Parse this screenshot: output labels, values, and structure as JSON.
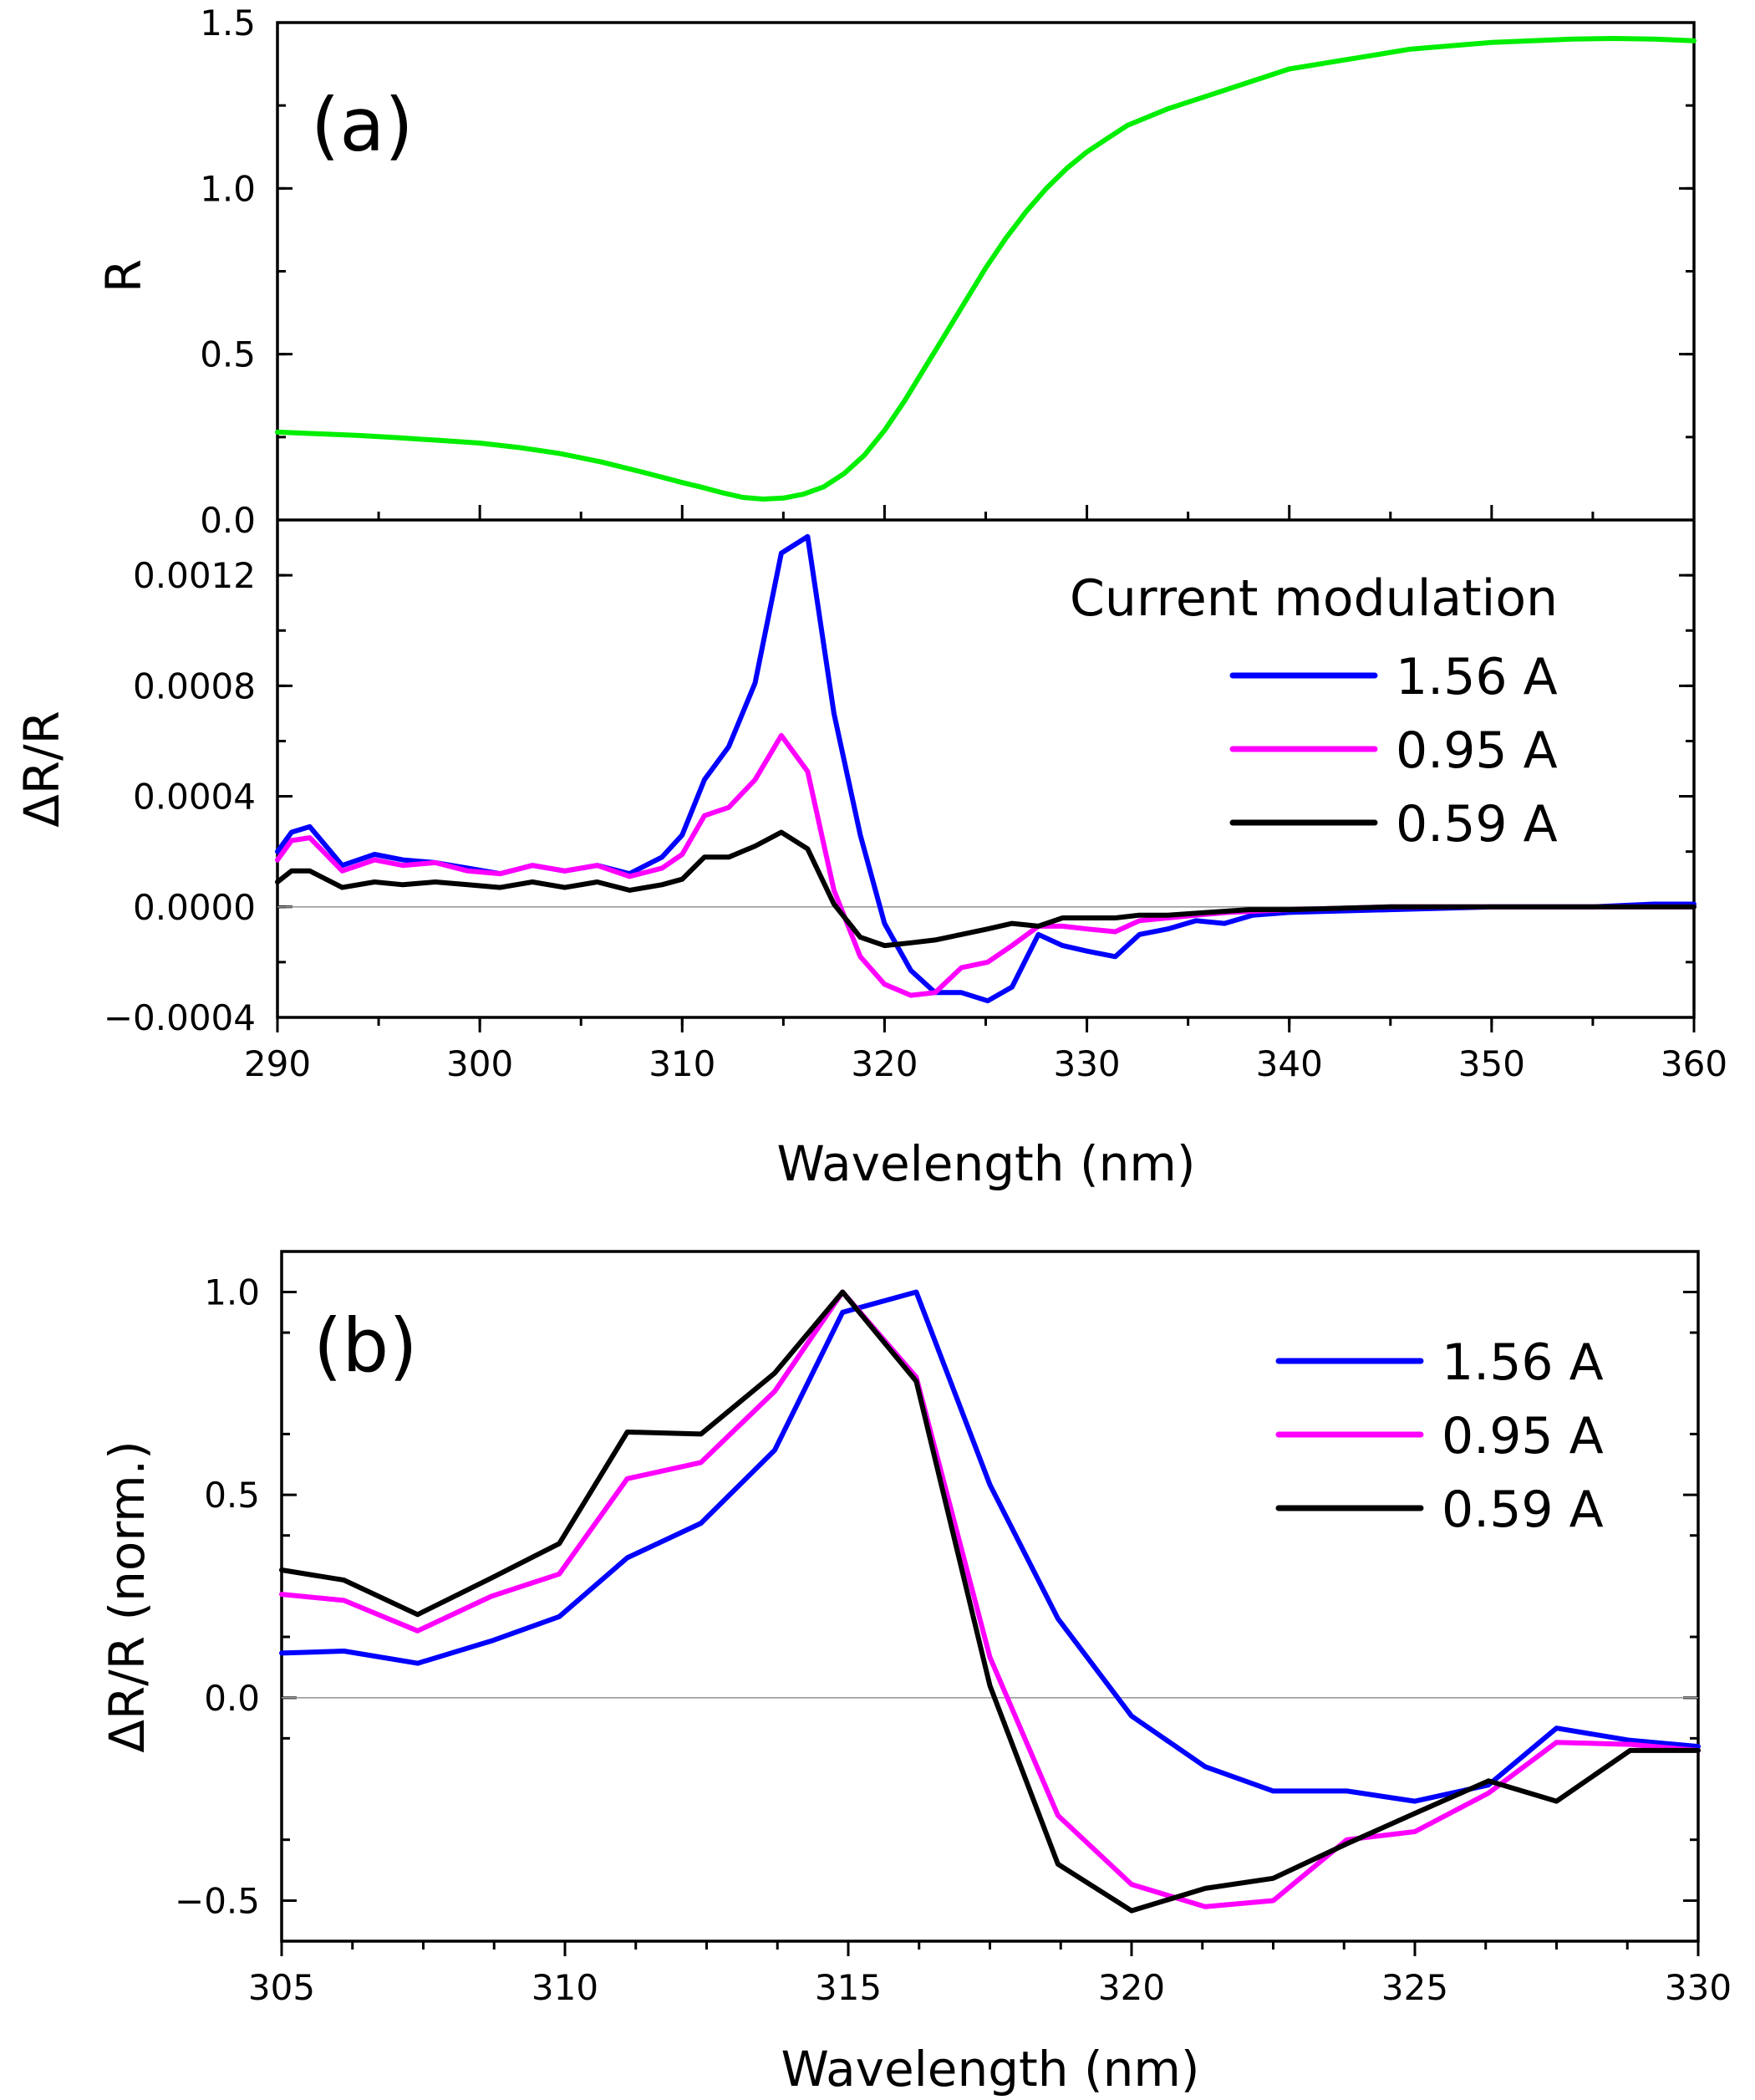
{
  "chart_data": [
    {
      "panel": "(a)",
      "type": "line",
      "subplot": "top",
      "ylabel": "R",
      "xlim": [
        290,
        360
      ],
      "ylim": [
        0.0,
        1.5
      ],
      "yticks": [
        "0.0",
        "0.5",
        "1.0",
        "1.5"
      ],
      "series": [
        {
          "name": "R",
          "color": "#00ee00",
          "points": [
            [
              290,
              0.265
            ],
            [
              292,
              0.26
            ],
            [
              294,
              0.255
            ],
            [
              296,
              0.248
            ],
            [
              298,
              0.24
            ],
            [
              300,
              0.232
            ],
            [
              302,
              0.218
            ],
            [
              304,
              0.2
            ],
            [
              306,
              0.175
            ],
            [
              308,
              0.145
            ],
            [
              310,
              0.113
            ],
            [
              311,
              0.098
            ],
            [
              312,
              0.082
            ],
            [
              313,
              0.068
            ],
            [
              314,
              0.063
            ],
            [
              315,
              0.066
            ],
            [
              316,
              0.078
            ],
            [
              317,
              0.1
            ],
            [
              318,
              0.14
            ],
            [
              319,
              0.195
            ],
            [
              320,
              0.27
            ],
            [
              321,
              0.36
            ],
            [
              322,
              0.46
            ],
            [
              323,
              0.56
            ],
            [
              324,
              0.66
            ],
            [
              325,
              0.76
            ],
            [
              326,
              0.85
            ],
            [
              327,
              0.93
            ],
            [
              328,
              1.0
            ],
            [
              329,
              1.06
            ],
            [
              330,
              1.11
            ],
            [
              331,
              1.15
            ],
            [
              332,
              1.19
            ],
            [
              334,
              1.24
            ],
            [
              336,
              1.28
            ],
            [
              338,
              1.32
            ],
            [
              340,
              1.36
            ],
            [
              342,
              1.38
            ],
            [
              344,
              1.4
            ],
            [
              346,
              1.42
            ],
            [
              348,
              1.43
            ],
            [
              350,
              1.44
            ],
            [
              352,
              1.445
            ],
            [
              354,
              1.45
            ],
            [
              356,
              1.452
            ],
            [
              358,
              1.45
            ],
            [
              360,
              1.445
            ]
          ]
        }
      ]
    },
    {
      "panel": "",
      "type": "line",
      "subplot": "middle",
      "ylabel": "ΔR/R",
      "xlabel": "Wavelength (nm)",
      "xlim": [
        290,
        360
      ],
      "ylim": [
        -0.0004,
        0.0014
      ],
      "yticks": [
        "−0.0004",
        "0.0000",
        "0.0004",
        "0.0008",
        "0.0012"
      ],
      "xticks": [
        "290",
        "300",
        "310",
        "320",
        "330",
        "340",
        "350",
        "360"
      ],
      "legend_title": "Current modulation",
      "series": [
        {
          "name": "1.56 A",
          "color": "#0000ff",
          "points": [
            [
              290,
              0.0002
            ],
            [
              290.7,
              0.00027
            ],
            [
              291.6,
              0.00029
            ],
            [
              293.2,
              0.00015
            ],
            [
              294.8,
              0.00019
            ],
            [
              296.2,
              0.00017
            ],
            [
              297.8,
              0.00016
            ],
            [
              299.4,
              0.00014
            ],
            [
              301,
              0.00012
            ],
            [
              302.6,
              0.00015
            ],
            [
              304.2,
              0.00013
            ],
            [
              305.8,
              0.00015
            ],
            [
              307.4,
              0.00012
            ],
            [
              309,
              0.00018
            ],
            [
              310,
              0.00026
            ],
            [
              311.1,
              0.00046
            ],
            [
              312.3,
              0.00058
            ],
            [
              313.6,
              0.00081
            ],
            [
              314.9,
              0.00128
            ],
            [
              316.2,
              0.00134
            ],
            [
              317.5,
              0.0007
            ],
            [
              318.8,
              0.00026
            ],
            [
              320,
              -6e-05
            ],
            [
              321.3,
              -0.00023
            ],
            [
              322.5,
              -0.00031
            ],
            [
              323.8,
              -0.00031
            ],
            [
              325.1,
              -0.00034
            ],
            [
              326.3,
              -0.00029
            ],
            [
              327.6,
              -0.0001
            ],
            [
              328.8,
              -0.00014
            ],
            [
              330,
              -0.00016
            ],
            [
              331.4,
              -0.00018
            ],
            [
              332.6,
              -0.0001
            ],
            [
              334,
              -8e-05
            ],
            [
              335.4,
              -5e-05
            ],
            [
              336.8,
              -6e-05
            ],
            [
              338.2,
              -3e-05
            ],
            [
              340,
              -2e-05
            ],
            [
              345,
              -1e-05
            ],
            [
              350,
              0
            ],
            [
              355,
              0
            ],
            [
              358,
              1e-05
            ],
            [
              360,
              1e-05
            ]
          ]
        },
        {
          "name": "0.95 A",
          "color": "#ff00ff",
          "points": [
            [
              290,
              0.00017
            ],
            [
              290.7,
              0.00024
            ],
            [
              291.6,
              0.00025
            ],
            [
              293.2,
              0.00013
            ],
            [
              294.8,
              0.00017
            ],
            [
              296.2,
              0.00015
            ],
            [
              297.8,
              0.00016
            ],
            [
              299.4,
              0.00013
            ],
            [
              301,
              0.00012
            ],
            [
              302.6,
              0.00015
            ],
            [
              304.2,
              0.00013
            ],
            [
              305.8,
              0.00015
            ],
            [
              307.4,
              0.00011
            ],
            [
              309,
              0.00014
            ],
            [
              310,
              0.00019
            ],
            [
              311.1,
              0.00033
            ],
            [
              312.3,
              0.00036
            ],
            [
              313.6,
              0.00046
            ],
            [
              314.9,
              0.00062
            ],
            [
              316.2,
              0.00049
            ],
            [
              317.5,
              6e-05
            ],
            [
              318.8,
              -0.00018
            ],
            [
              320,
              -0.00028
            ],
            [
              321.3,
              -0.00032
            ],
            [
              322.5,
              -0.00031
            ],
            [
              323.8,
              -0.00022
            ],
            [
              325.1,
              -0.0002
            ],
            [
              326.3,
              -0.00014
            ],
            [
              327.6,
              -7e-05
            ],
            [
              328.8,
              -7e-05
            ],
            [
              330,
              -8e-05
            ],
            [
              331.4,
              -9e-05
            ],
            [
              332.6,
              -5e-05
            ],
            [
              334,
              -4e-05
            ],
            [
              335.4,
              -3e-05
            ],
            [
              337,
              -2e-05
            ],
            [
              340,
              -1e-05
            ],
            [
              345,
              0
            ],
            [
              350,
              0
            ],
            [
              360,
              0
            ]
          ]
        },
        {
          "name": "0.59 A",
          "color": "#000000",
          "points": [
            [
              290,
              9e-05
            ],
            [
              290.7,
              0.00013
            ],
            [
              291.6,
              0.00013
            ],
            [
              293.2,
              7e-05
            ],
            [
              294.8,
              9e-05
            ],
            [
              296.2,
              8e-05
            ],
            [
              297.8,
              9e-05
            ],
            [
              299.4,
              8e-05
            ],
            [
              301,
              7e-05
            ],
            [
              302.6,
              9e-05
            ],
            [
              304.2,
              7e-05
            ],
            [
              305.8,
              9e-05
            ],
            [
              307.4,
              6e-05
            ],
            [
              309,
              8e-05
            ],
            [
              310,
              0.0001
            ],
            [
              311.1,
              0.00018
            ],
            [
              312.3,
              0.00018
            ],
            [
              313.6,
              0.00022
            ],
            [
              314.9,
              0.00027
            ],
            [
              316.2,
              0.00021
            ],
            [
              317.5,
              1e-05
            ],
            [
              318.8,
              -0.00011
            ],
            [
              320,
              -0.00014
            ],
            [
              321.3,
              -0.00013
            ],
            [
              322.5,
              -0.00012
            ],
            [
              323.8,
              -0.0001
            ],
            [
              325.1,
              -8e-05
            ],
            [
              326.3,
              -6e-05
            ],
            [
              327.6,
              -7e-05
            ],
            [
              328.8,
              -4e-05
            ],
            [
              330,
              -4e-05
            ],
            [
              331.4,
              -4e-05
            ],
            [
              332.6,
              -3e-05
            ],
            [
              334,
              -3e-05
            ],
            [
              336,
              -2e-05
            ],
            [
              338,
              -1e-05
            ],
            [
              340,
              -1e-05
            ],
            [
              345,
              0
            ],
            [
              350,
              0
            ],
            [
              360,
              0
            ]
          ]
        }
      ]
    },
    {
      "panel": "(b)",
      "type": "line",
      "subplot": "bottom",
      "ylabel": "ΔR/R (norm.)",
      "xlabel": "Wavelength (nm)",
      "xlim": [
        305,
        330
      ],
      "ylim": [
        -0.6,
        1.1
      ],
      "yticks": [
        "−0.5",
        "0.0",
        "0.5",
        "1.0"
      ],
      "xticks": [
        "305",
        "310",
        "315",
        "320",
        "325",
        "330"
      ],
      "series": [
        {
          "name": "1.56 A",
          "color": "#0000ff",
          "points": [
            [
              305,
              0.11
            ],
            [
              306.1,
              0.115
            ],
            [
              307.4,
              0.085
            ],
            [
              308.7,
              0.14
            ],
            [
              309.9,
              0.2
            ],
            [
              311.1,
              0.345
            ],
            [
              312.4,
              0.43
            ],
            [
              313.7,
              0.61
            ],
            [
              314.9,
              0.95
            ],
            [
              316.2,
              1.0
            ],
            [
              317.5,
              0.525
            ],
            [
              318.7,
              0.195
            ],
            [
              320,
              -0.045
            ],
            [
              321.3,
              -0.17
            ],
            [
              322.5,
              -0.23
            ],
            [
              323.8,
              -0.23
            ],
            [
              325,
              -0.255
            ],
            [
              326.3,
              -0.215
            ],
            [
              327.5,
              -0.075
            ],
            [
              328.8,
              -0.105
            ],
            [
              330,
              -0.12
            ]
          ]
        },
        {
          "name": "0.95 A",
          "color": "#ff00ff",
          "points": [
            [
              305,
              0.255
            ],
            [
              306.1,
              0.24
            ],
            [
              307.4,
              0.165
            ],
            [
              308.7,
              0.25
            ],
            [
              309.9,
              0.305
            ],
            [
              311.1,
              0.54
            ],
            [
              312.4,
              0.58
            ],
            [
              313.7,
              0.755
            ],
            [
              314.9,
              1.0
            ],
            [
              316.2,
              0.79
            ],
            [
              317.5,
              0.1
            ],
            [
              318.7,
              -0.29
            ],
            [
              320,
              -0.46
            ],
            [
              321.3,
              -0.515
            ],
            [
              322.5,
              -0.5
            ],
            [
              323.8,
              -0.35
            ],
            [
              325,
              -0.33
            ],
            [
              326.3,
              -0.235
            ],
            [
              327.5,
              -0.11
            ],
            [
              328.8,
              -0.115
            ],
            [
              330,
              -0.13
            ]
          ]
        },
        {
          "name": "0.59 A",
          "color": "#000000",
          "points": [
            [
              305,
              0.315
            ],
            [
              306.1,
              0.29
            ],
            [
              307.4,
              0.205
            ],
            [
              308.7,
              0.295
            ],
            [
              309.9,
              0.38
            ],
            [
              311.1,
              0.655
            ],
            [
              312.4,
              0.65
            ],
            [
              313.7,
              0.8
            ],
            [
              314.9,
              1.0
            ],
            [
              316.2,
              0.78
            ],
            [
              317.5,
              0.03
            ],
            [
              318.7,
              -0.41
            ],
            [
              320,
              -0.525
            ],
            [
              321.3,
              -0.47
            ],
            [
              322.5,
              -0.445
            ],
            [
              323.8,
              -0.36
            ],
            [
              325,
              -0.285
            ],
            [
              326.3,
              -0.205
            ],
            [
              327.5,
              -0.255
            ],
            [
              328.8,
              -0.13
            ],
            [
              330,
              -0.13
            ]
          ]
        }
      ]
    }
  ]
}
